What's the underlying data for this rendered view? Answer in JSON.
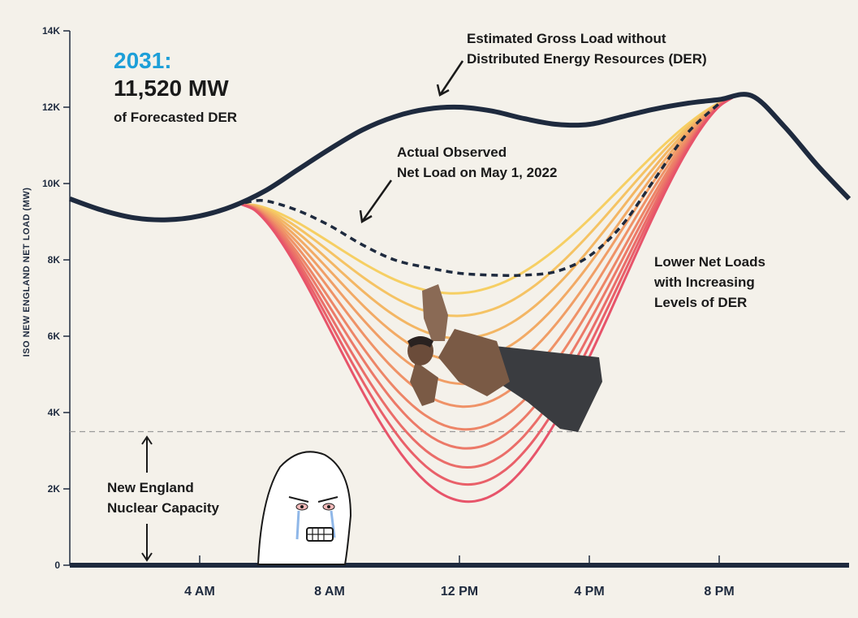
{
  "chart_data": {
    "type": "line",
    "ylabel": "ISO NEW ENGLAND NET LOAD (MW)",
    "ylim": [
      0,
      14000
    ],
    "yticks": [
      "0",
      "2K",
      "4K",
      "6K",
      "8K",
      "10K",
      "12K",
      "14K"
    ],
    "ytick_values": [
      0,
      2000,
      4000,
      6000,
      8000,
      10000,
      12000,
      14000
    ],
    "xlim": [
      0,
      24
    ],
    "xticks": [
      "4 AM",
      "8 AM",
      "12 PM",
      "4 PM",
      "8 PM"
    ],
    "xtick_values": [
      4,
      8,
      12,
      16,
      20
    ],
    "nuclear_capacity_mw": 3500,
    "series": [
      {
        "key": "gross",
        "x": [
          0,
          1,
          2,
          3,
          4,
          5,
          6,
          7,
          8,
          9,
          10,
          11,
          12,
          13,
          14,
          15,
          16,
          17,
          18,
          19,
          20,
          21,
          22,
          23,
          24
        ],
        "y": [
          9600,
          9300,
          9100,
          9050,
          9150,
          9400,
          9800,
          10350,
          10900,
          11400,
          11750,
          11950,
          12000,
          11900,
          11700,
          11550,
          11550,
          11750,
          11950,
          12100,
          12200,
          12300,
          11500,
          10500,
          9600
        ]
      },
      {
        "key": "actual",
        "x": [
          5.4,
          6,
          7,
          8,
          9,
          10,
          11,
          12,
          13,
          14,
          15,
          16,
          17,
          18,
          19,
          20
        ],
        "y": [
          9500,
          9550,
          9300,
          8900,
          8400,
          8000,
          7800,
          7650,
          7600,
          7600,
          7700,
          8100,
          8900,
          10100,
          11300,
          12100
        ]
      }
    ],
    "der_curves": [
      {
        "min": 7300
      },
      {
        "min": 6700
      },
      {
        "min": 6100
      },
      {
        "min": 5500
      },
      {
        "min": 4900
      },
      {
        "min": 4300
      },
      {
        "min": 3700
      },
      {
        "min": 3200
      },
      {
        "min": 2700
      },
      {
        "min": 2250
      },
      {
        "min": 1800
      }
    ],
    "colors": {
      "gross": "#1e2a3e",
      "actual": "#1e2a3e",
      "der_light": "#f6cf63",
      "der_dark": "#e7546a",
      "nuclear_line": "#9a9a9a",
      "headline_accent": "#1d9fd8"
    }
  },
  "annotations": {
    "year": "2031:",
    "mw": "11,520 MW",
    "forecast": "of Forecasted DER",
    "gross_l1": "Estimated Gross Load without",
    "gross_l2": "Distributed Energy Resources (DER)",
    "actual_l1": "Actual Observed",
    "actual_l2": "Net Load on May 1, 2022",
    "lower_l1": "Lower Net Loads",
    "lower_l2": "with Increasing",
    "lower_l3": "Levels of DER",
    "nuclear_l1": "New England",
    "nuclear_l2": "Nuclear Capacity"
  }
}
